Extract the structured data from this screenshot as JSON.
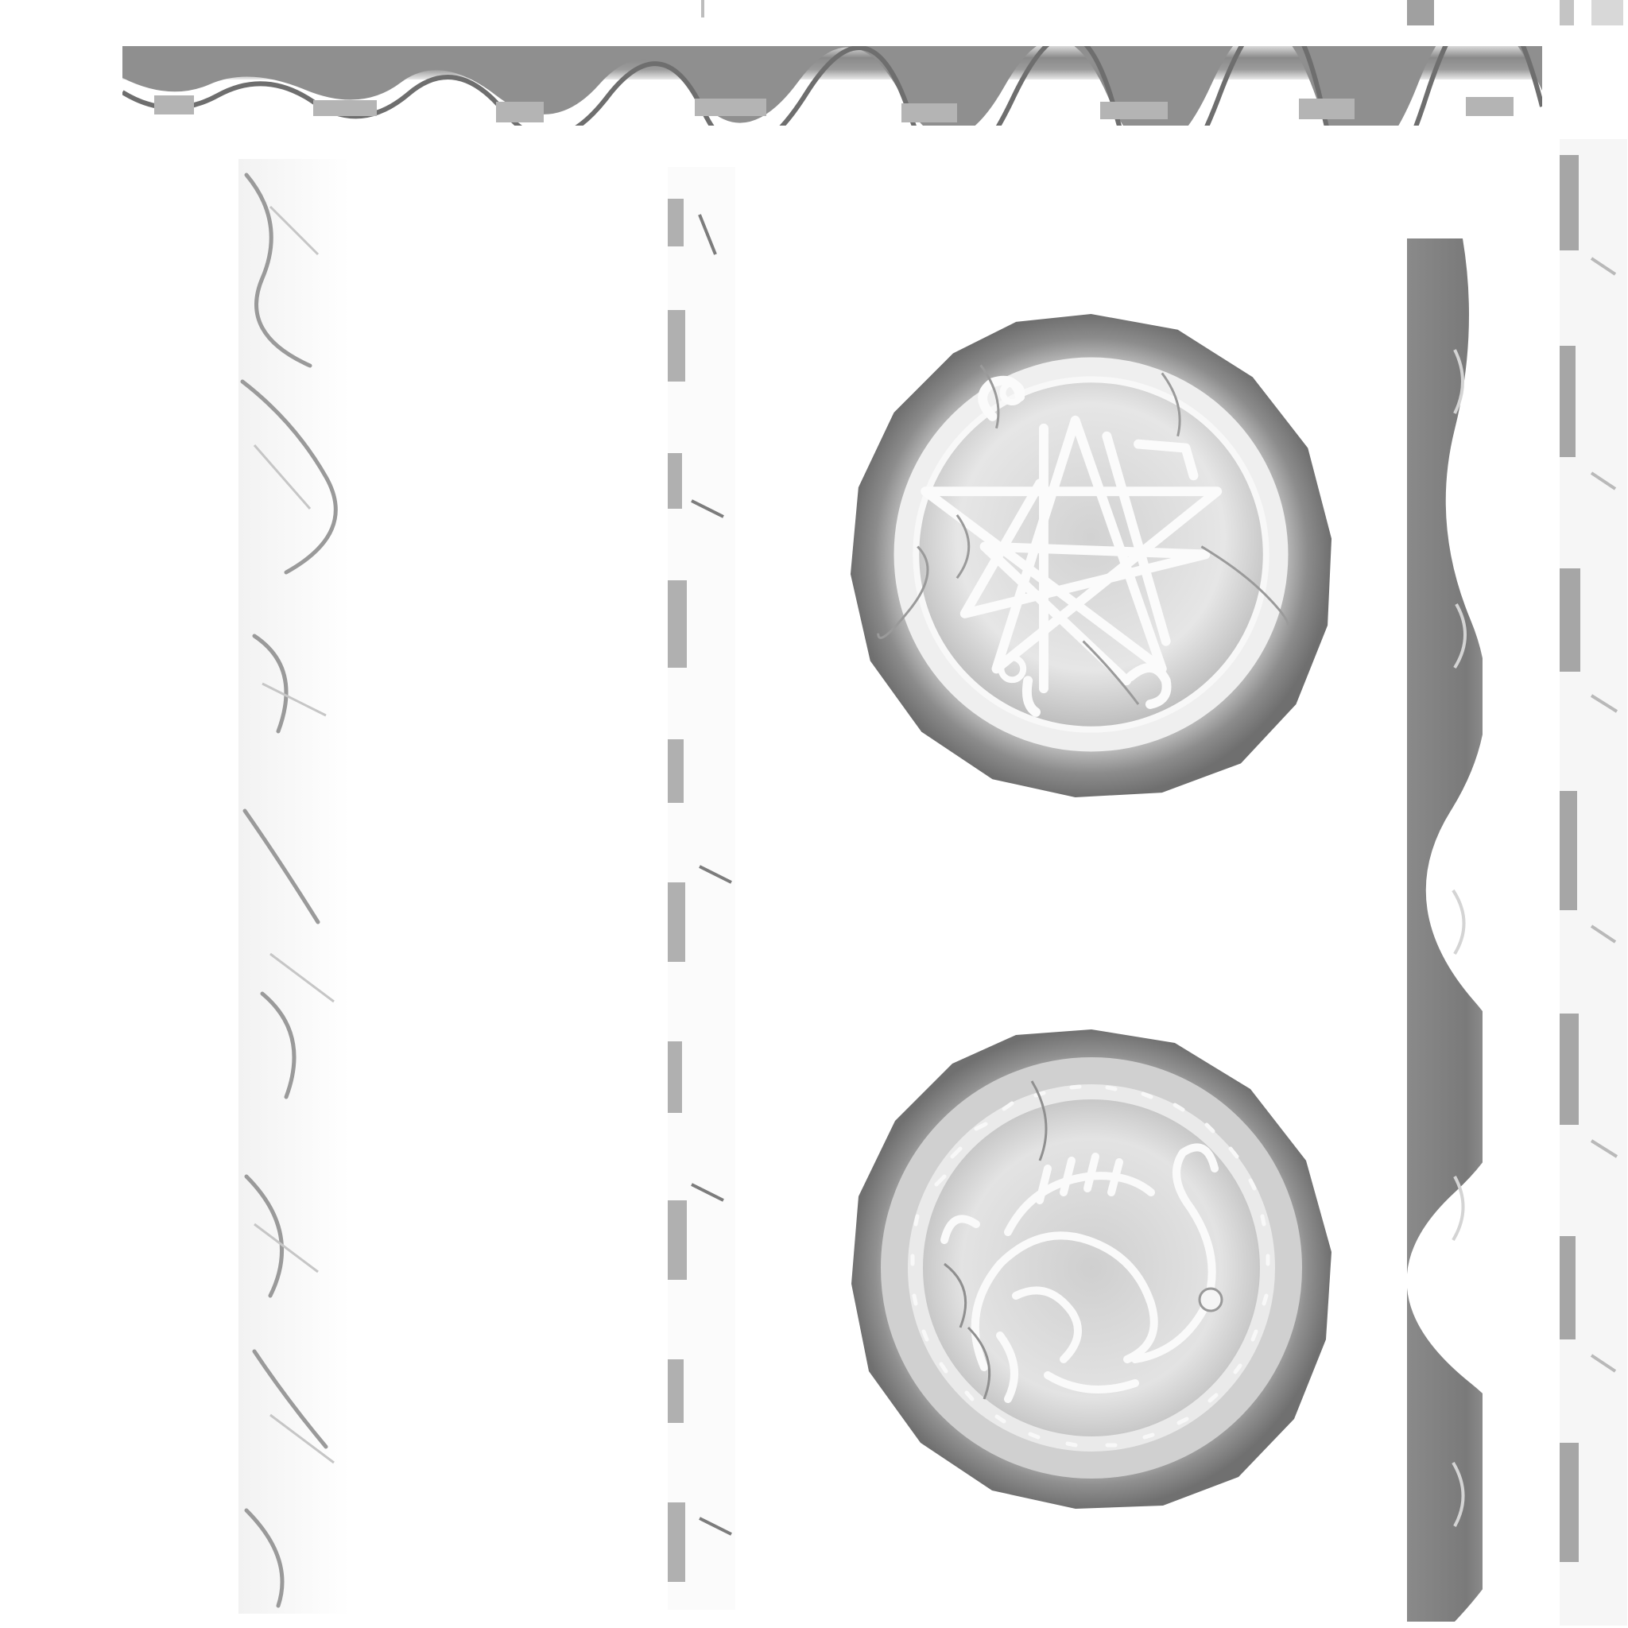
{
  "atlas": {
    "kind": "texture-atlas",
    "colors": {
      "background": "#ffffff",
      "stone_dark": "#7a7a7a",
      "stone_mid": "#a8a8a8",
      "stone_light": "#e6e6e6",
      "engraving": "#f7f7f7"
    }
  },
  "assets": {
    "top_border": {
      "icon": "stone-border-strip-horizontal-icon"
    },
    "left_border": {
      "icon": "cracked-stone-strip-vertical-icon"
    },
    "middle_border": {
      "icon": "stone-edge-strip-vertical-icon"
    },
    "right_dark_border": {
      "icon": "dark-stone-strip-vertical-icon"
    },
    "right_light_border": {
      "icon": "light-stone-strip-vertical-icon"
    },
    "sigil_coin": {
      "icon": "sigil-star-coin-icon"
    },
    "dragon_coin": {
      "icon": "dragon-rune-coin-icon"
    }
  }
}
